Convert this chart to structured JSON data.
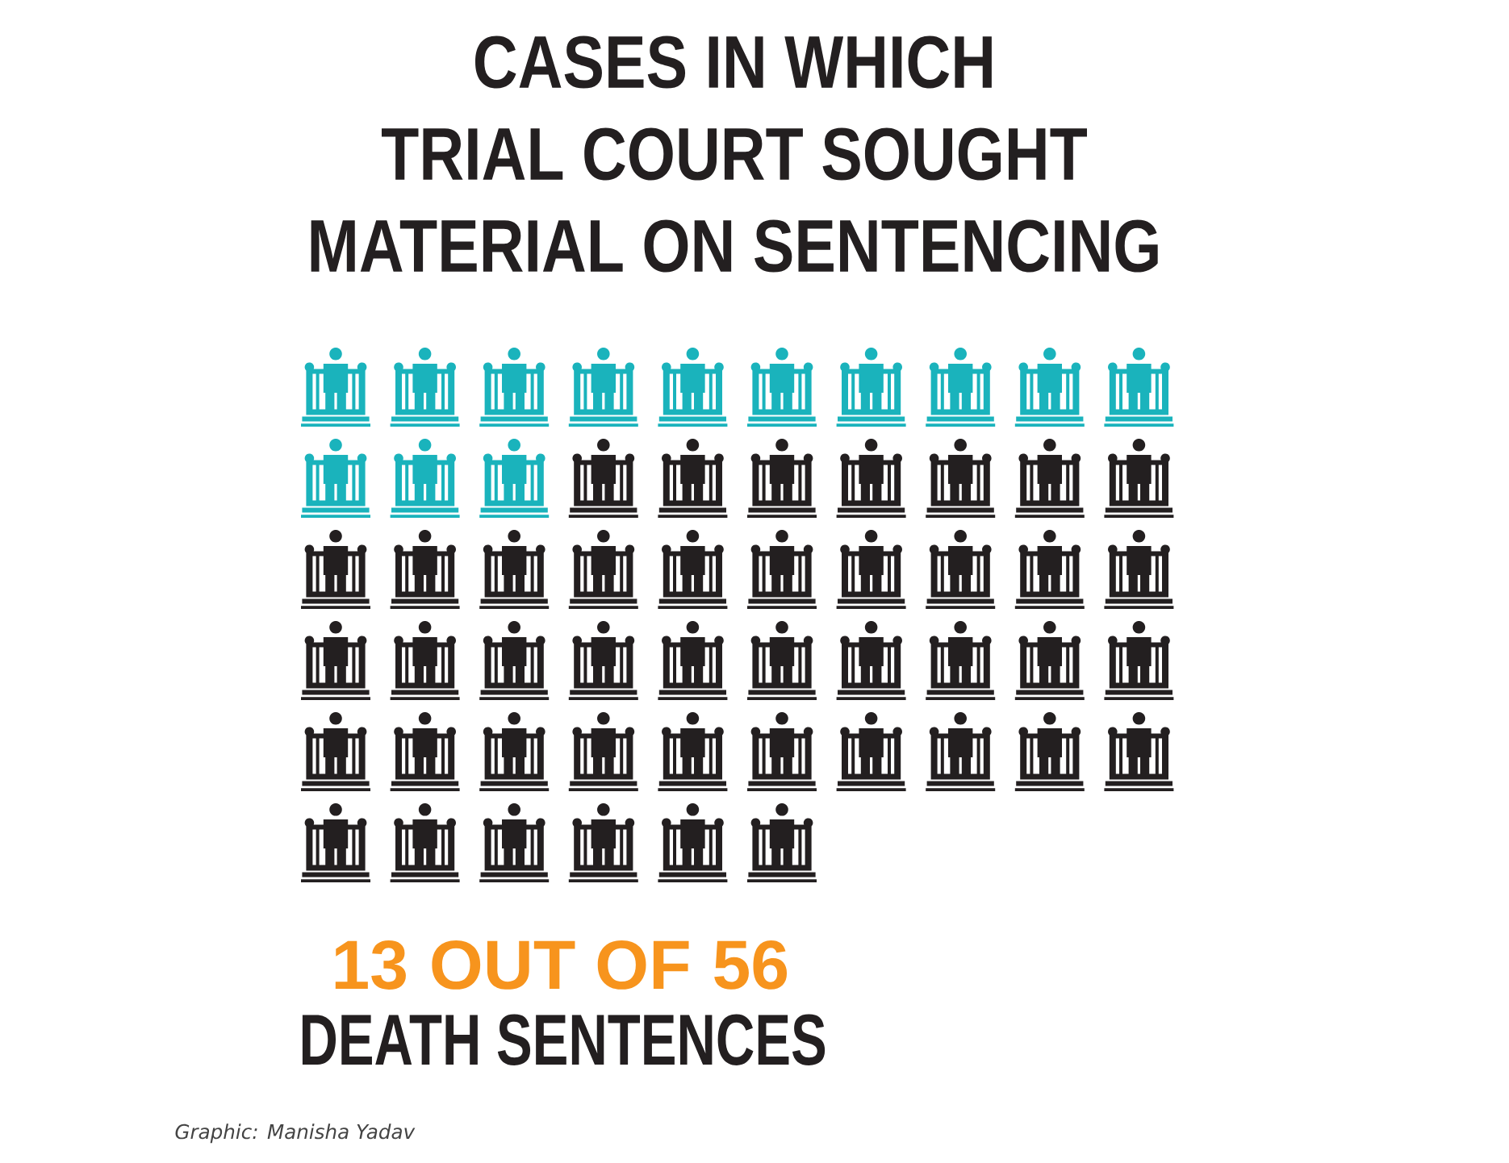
{
  "chart_data": {
    "type": "other",
    "title": "CASES IN WHICH TRIAL COURT SOUGHT MATERIAL ON SENTENCING",
    "values": [
      13,
      56
    ],
    "value_labels": [
      "13",
      "56"
    ],
    "colors": [
      "#1ab3bc",
      "#231f20"
    ],
    "annotations": [
      "OUT OF",
      "DEATH SENTENCES",
      "Graphic: Manisha Yadav"
    ]
  }
}
